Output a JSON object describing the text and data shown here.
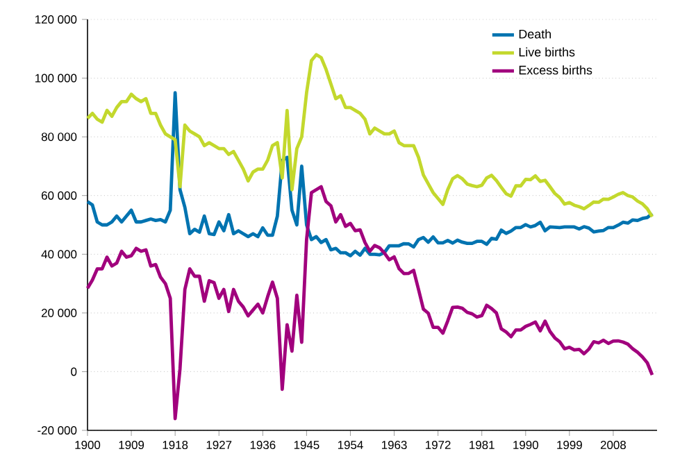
{
  "chart_data": {
    "type": "line",
    "x": [
      1900,
      1901,
      1902,
      1903,
      1904,
      1905,
      1906,
      1907,
      1908,
      1909,
      1910,
      1911,
      1912,
      1913,
      1914,
      1915,
      1916,
      1917,
      1918,
      1919,
      1920,
      1921,
      1922,
      1923,
      1924,
      1925,
      1926,
      1927,
      1928,
      1929,
      1930,
      1931,
      1932,
      1933,
      1934,
      1935,
      1936,
      1937,
      1938,
      1939,
      1940,
      1941,
      1942,
      1943,
      1944,
      1945,
      1946,
      1947,
      1948,
      1949,
      1950,
      1951,
      1952,
      1953,
      1954,
      1955,
      1956,
      1957,
      1958,
      1959,
      1960,
      1961,
      1962,
      1963,
      1964,
      1965,
      1966,
      1967,
      1968,
      1969,
      1970,
      1971,
      1972,
      1973,
      1974,
      1975,
      1976,
      1977,
      1978,
      1979,
      1980,
      1981,
      1982,
      1983,
      1984,
      1985,
      1986,
      1987,
      1988,
      1989,
      1990,
      1991,
      1992,
      1993,
      1994,
      1995,
      1996,
      1997,
      1998,
      1999,
      2000,
      2001,
      2002,
      2003,
      2004,
      2005,
      2006,
      2007,
      2008,
      2009,
      2010,
      2011,
      2012,
      2013,
      2014,
      2015,
      2016
    ],
    "series": [
      {
        "name": "Death",
        "color": "#0073b0",
        "values": [
          57900,
          56800,
          51000,
          50000,
          50000,
          51000,
          53000,
          51000,
          53000,
          55000,
          51000,
          51000,
          51500,
          52000,
          51500,
          51800,
          51000,
          55000,
          95000,
          62000,
          56000,
          47000,
          48500,
          47500,
          53000,
          47000,
          46700,
          51000,
          48000,
          53500,
          47000,
          48000,
          47000,
          46000,
          47000,
          46000,
          49000,
          46500,
          46500,
          53000,
          72000,
          73000,
          55000,
          50000,
          70000,
          50000,
          45000,
          46000,
          44000,
          45000,
          41500,
          42000,
          40500,
          40500,
          39500,
          41000,
          39700,
          42000,
          40000,
          40000,
          39800,
          40600,
          42900,
          42900,
          42900,
          43600,
          43500,
          42500,
          45000,
          45700,
          44100,
          45900,
          43900,
          43900,
          44700,
          43800,
          44800,
          44100,
          43700,
          43700,
          44400,
          44400,
          43400,
          45400,
          45100,
          48200,
          47100,
          47900,
          49100,
          49100,
          50100,
          49300,
          49800,
          50900,
          48000,
          49300,
          49200,
          49100,
          49300,
          49300,
          49300,
          48600,
          49400,
          48900,
          47600,
          47900,
          48100,
          49100,
          49100,
          49900,
          50900,
          50600,
          51700,
          51500,
          52200,
          52500,
          53900
        ]
      },
      {
        "name": "Live births",
        "color": "#c3d82d",
        "values": [
          86300,
          88000,
          86000,
          85000,
          89000,
          87000,
          90000,
          92000,
          92000,
          94500,
          93000,
          92000,
          93000,
          88000,
          88000,
          84000,
          81000,
          80000,
          79000,
          63000,
          84000,
          82000,
          81000,
          80000,
          77000,
          78000,
          77000,
          76000,
          76000,
          74000,
          75000,
          72000,
          69000,
          65000,
          68000,
          69000,
          69000,
          72000,
          77000,
          78000,
          66000,
          89000,
          62000,
          76000,
          80000,
          95000,
          106000,
          108000,
          107000,
          103000,
          98000,
          93000,
          94000,
          90000,
          90000,
          89000,
          88000,
          86000,
          81000,
          83000,
          82000,
          81000,
          81000,
          82000,
          78000,
          77000,
          77000,
          77000,
          73000,
          67000,
          64000,
          61000,
          59000,
          57000,
          62000,
          65700,
          66800,
          65700,
          63900,
          63400,
          63000,
          63500,
          66000,
          66900,
          65100,
          62800,
          60600,
          59800,
          63300,
          63300,
          65500,
          65400,
          66700,
          64800,
          65200,
          63000,
          60700,
          59300,
          57100,
          57600,
          56700,
          56200,
          55500,
          56600,
          57800,
          57700,
          58800,
          58700,
          59500,
          60400,
          61000,
          60000,
          59500,
          58100,
          57200,
          55500,
          52800
        ]
      },
      {
        "name": "Excess births",
        "color": "#a1007d",
        "values": [
          28400,
          31200,
          35000,
          35000,
          39000,
          36000,
          37000,
          41000,
          39000,
          39500,
          42000,
          41000,
          41500,
          36000,
          36500,
          32200,
          30000,
          25000,
          -16000,
          1000,
          28000,
          35000,
          32500,
          32500,
          24000,
          31000,
          30300,
          25000,
          28000,
          20500,
          28000,
          24000,
          22000,
          19000,
          21000,
          23000,
          20000,
          25500,
          30500,
          25000,
          -6000,
          16000,
          7000,
          26000,
          10000,
          45000,
          61000,
          62000,
          63000,
          58000,
          56500,
          51000,
          53500,
          49500,
          50500,
          48000,
          48300,
          44000,
          41000,
          43000,
          42200,
          40400,
          38100,
          39100,
          35100,
          33400,
          33500,
          34500,
          28000,
          21300,
          19900,
          15100,
          15100,
          13100,
          17300,
          21900,
          22000,
          21600,
          20200,
          19700,
          18600,
          19100,
          22600,
          21500,
          20000,
          14600,
          13500,
          11900,
          14200,
          14200,
          15400,
          16100,
          16900,
          13900,
          17200,
          13700,
          11500,
          10200,
          7800,
          8300,
          7400,
          7600,
          6100,
          7700,
          10200,
          9800,
          10700,
          9600,
          10400,
          10500,
          10100,
          9400,
          7800,
          6600,
          5000,
          3000,
          -1100
        ]
      }
    ],
    "xlim": [
      1900,
      2017
    ],
    "xticks": [
      1900,
      1909,
      1918,
      1927,
      1936,
      1945,
      1954,
      1963,
      1972,
      1981,
      1990,
      1999,
      2008
    ],
    "ylim": [
      -20000,
      120000
    ],
    "yticks": [
      {
        "value": -20000,
        "label": "-20 000"
      },
      0,
      {
        "value": 20000,
        "label": "20 000"
      },
      {
        "value": 40000,
        "label": "40 000"
      },
      {
        "value": 60000,
        "label": "60 000"
      },
      {
        "value": 80000,
        "label": "80 000"
      },
      {
        "value": 100000,
        "label": "100 000"
      },
      {
        "value": 120000,
        "label": "120 000"
      }
    ],
    "grid": "y",
    "legend": "top right",
    "marker": "none",
    "line_style": "solid"
  }
}
